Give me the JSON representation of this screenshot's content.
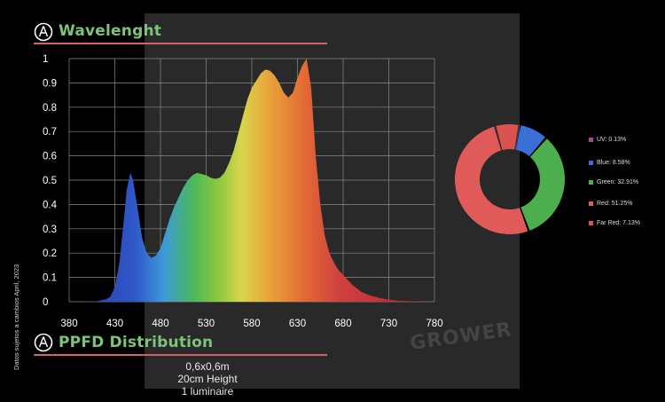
{
  "header": {
    "wavelength_title": "Wavelenght",
    "ppfd_title": "PPFD Distribution"
  },
  "side_note": {
    "text": "Datos sujetos a cambios    April, 2023"
  },
  "ppfd": {
    "size": "0,6x0,6m",
    "height": "20cm Height",
    "count": "1 luminaire"
  },
  "watermark": "GROWER",
  "colors": {
    "title_green": "#7cc47a",
    "underline_red": "#d4606a",
    "uv": "#9b4f8f",
    "blue": "#3a6fd8",
    "green": "#4cae4c",
    "red": "#e05a5a",
    "far_red": "#d9534f"
  },
  "chart_data": [
    {
      "type": "area",
      "title": "Wavelenght",
      "xlabel": "",
      "ylabel": "",
      "xlim": [
        380,
        780
      ],
      "ylim": [
        0,
        1
      ],
      "grid": true,
      "x_ticks": [
        380,
        430,
        480,
        530,
        580,
        630,
        680,
        730,
        780
      ],
      "y_ticks": [
        0,
        0.1,
        0.2,
        0.3,
        0.4,
        0.5,
        0.6,
        0.7,
        0.8,
        0.9,
        1
      ],
      "x_tick_labels": [
        "380",
        "430",
        "480",
        "530",
        "580",
        "630",
        "680",
        "730",
        "780"
      ],
      "y_tick_labels": [
        "0",
        "0.1",
        "0.2",
        "0.3",
        "0.4",
        "0.5",
        "0.6",
        "0.7",
        "0.8",
        "0.9",
        "1"
      ],
      "x": [
        380,
        400,
        410,
        420,
        425,
        430,
        435,
        440,
        443,
        447,
        450,
        455,
        460,
        465,
        470,
        475,
        480,
        485,
        490,
        495,
        500,
        505,
        510,
        515,
        520,
        525,
        530,
        535,
        540,
        545,
        550,
        555,
        560,
        565,
        570,
        575,
        580,
        585,
        590,
        595,
        600,
        605,
        610,
        615,
        620,
        625,
        630,
        635,
        640,
        645,
        650,
        655,
        660,
        665,
        670,
        675,
        680,
        690,
        700,
        710,
        720,
        730,
        740,
        760,
        780
      ],
      "values": [
        0,
        0,
        0.002,
        0.01,
        0.02,
        0.06,
        0.16,
        0.34,
        0.46,
        0.53,
        0.5,
        0.38,
        0.26,
        0.2,
        0.18,
        0.19,
        0.22,
        0.28,
        0.34,
        0.39,
        0.43,
        0.47,
        0.5,
        0.52,
        0.53,
        0.525,
        0.52,
        0.51,
        0.505,
        0.51,
        0.53,
        0.57,
        0.62,
        0.69,
        0.76,
        0.83,
        0.88,
        0.91,
        0.94,
        0.955,
        0.95,
        0.93,
        0.9,
        0.86,
        0.84,
        0.86,
        0.92,
        0.97,
        1.0,
        0.88,
        0.6,
        0.4,
        0.27,
        0.2,
        0.16,
        0.13,
        0.11,
        0.07,
        0.04,
        0.025,
        0.015,
        0.008,
        0.004,
        0.001,
        0
      ]
    },
    {
      "type": "pie",
      "variant": "donut",
      "categories": [
        "UV: 0.13%",
        "Blue: 8.58%",
        "Green: 32.91%",
        "Red: 51.25%",
        "Far Red: 7.13%"
      ],
      "values": [
        0.13,
        8.58,
        32.91,
        51.25,
        7.13
      ],
      "colors": [
        "#9b4f8f",
        "#3a6fd8",
        "#4cae4c",
        "#e05a5a",
        "#d9534f"
      ],
      "legend": "right"
    }
  ]
}
